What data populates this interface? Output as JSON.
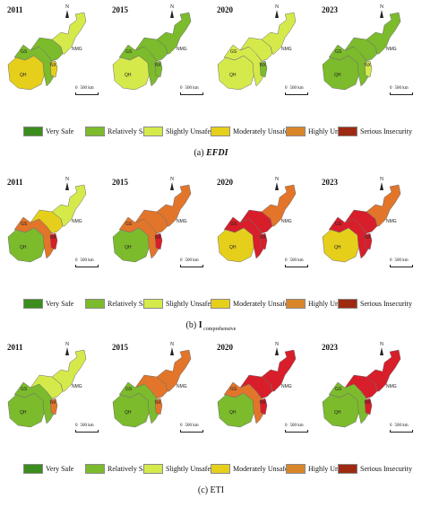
{
  "panels": [
    {
      "caption_prefix": "(a) ",
      "caption_main": "EFDI",
      "caption_sub": "",
      "legend_labels": [
        "Very Safe",
        "Relatively Safe",
        "Slightly Unsafe",
        "Moderately Unsafe",
        "Highly Unsafe",
        "Serious Insecurity"
      ],
      "maps": [
        {
          "year": "2011",
          "status": {
            "NMG": "Slightly Unsafe",
            "NMG_west": "Relatively Safe",
            "GS": "Relatively Safe",
            "QH": "Moderately Unsafe",
            "NX": "Moderately Unsafe"
          }
        },
        {
          "year": "2015",
          "status": {
            "NMG": "Relatively Safe",
            "NMG_west": "Relatively Safe",
            "GS": "Relatively Safe",
            "QH": "Slightly Unsafe",
            "NX": "Relatively Safe"
          }
        },
        {
          "year": "2020",
          "status": {
            "NMG": "Slightly Unsafe",
            "NMG_west": "Slightly Unsafe",
            "GS": "Slightly Unsafe",
            "QH": "Slightly Unsafe",
            "NX": "Relatively Safe"
          }
        },
        {
          "year": "2023",
          "status": {
            "NMG": "Relatively Safe",
            "NMG_west": "Relatively Safe",
            "GS": "Relatively Safe",
            "QH": "Relatively Safe",
            "NX": "Slightly Unsafe"
          }
        }
      ]
    },
    {
      "caption_prefix": "(b) ",
      "caption_main": "I",
      "caption_sub": " comprehensive",
      "legend_labels": [
        "Very Safe",
        "Relatively Safe",
        "Slightly Unsafe",
        "Moderately Unsafe",
        "Highly Unsafe",
        "Serious Insecurity"
      ],
      "maps": [
        {
          "year": "2011",
          "status": {
            "NMG": "Slightly Unsafe",
            "NMG_west": "Moderately Unsafe",
            "GS": "Highly Unsafe",
            "QH": "Relatively Safe",
            "NX": "Serious Insecurity"
          }
        },
        {
          "year": "2015",
          "status": {
            "NMG": "Highly Unsafe",
            "NMG_west": "Highly Unsafe",
            "GS": "Highly Unsafe",
            "QH": "Relatively Safe",
            "NX": "Serious Insecurity"
          }
        },
        {
          "year": "2020",
          "status": {
            "NMG": "Highly Unsafe",
            "NMG_west": "Serious Insecurity",
            "GS": "Serious Insecurity",
            "QH": "Moderately Unsafe",
            "NX": "Serious Insecurity"
          }
        },
        {
          "year": "2023",
          "status": {
            "NMG": "Highly Unsafe",
            "NMG_west": "Serious Insecurity",
            "GS": "Serious Insecurity",
            "QH": "Moderately Unsafe",
            "NX": "Serious Insecurity"
          }
        }
      ]
    },
    {
      "caption_prefix": "(c) ",
      "caption_main": "ETI",
      "caption_sub": "",
      "legend_labels": [
        "Very Safe",
        "Relatively Safe",
        "Slightly Unsafe",
        "Moderately Unsafe",
        "Highly Unsafe",
        "Serious Insecurity"
      ],
      "maps": [
        {
          "year": "2011",
          "status": {
            "NMG": "Slightly Unsafe",
            "NMG_west": "Slightly Unsafe",
            "GS": "Relatively Safe",
            "QH": "Relatively Safe",
            "NX": "Highly Unsafe"
          }
        },
        {
          "year": "2015",
          "status": {
            "NMG": "Highly Unsafe",
            "NMG_west": "Highly Unsafe",
            "GS": "Relatively Safe",
            "QH": "Relatively Safe",
            "NX": "Highly Unsafe"
          }
        },
        {
          "year": "2020",
          "status": {
            "NMG": "Serious Insecurity",
            "NMG_west": "Serious Insecurity",
            "GS": "Highly Unsafe",
            "QH": "Relatively Safe",
            "NX": "Serious Insecurity"
          }
        },
        {
          "year": "2023",
          "status": {
            "NMG": "Serious Insecurity",
            "NMG_west": "Serious Insecurity",
            "GS": "Relatively Safe",
            "QH": "Relatively Safe",
            "NX": "Serious Insecurity"
          }
        }
      ]
    }
  ],
  "region_labels": {
    "NMG": "NMG",
    "GS": "GS",
    "QH": "QH",
    "NX": "NX"
  },
  "north_label": "N",
  "scale_zero": "0",
  "scale_text": "500 km",
  "colors": {
    "Very Safe": "#3b8d1d",
    "Relatively Safe": "#7cbb2c",
    "Slightly Unsafe": "#d5ea4a",
    "Moderately Unsafe": "#e6cf1a",
    "Highly Unsafe": "#d9862a",
    "Serious Insecurity": "#9d2a11"
  },
  "map_highlight_colors": {
    "Highly Unsafe": "#e2752a",
    "Serious Insecurity": "#d81e2a"
  }
}
